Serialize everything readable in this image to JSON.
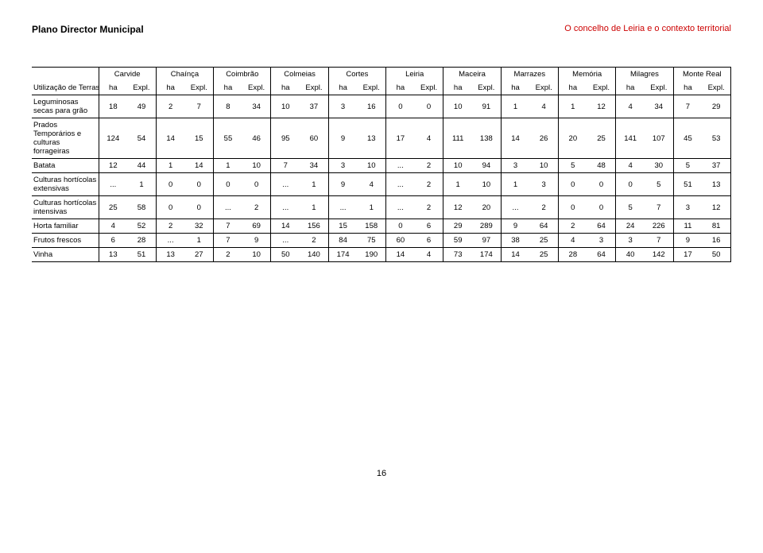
{
  "header": {
    "left": "Plano Director Municipal",
    "right": "O concelho de Leiria e o contexto territorial"
  },
  "table": {
    "regions": [
      "Carvide",
      "Chaínça",
      "Coimbrão",
      "Colmeias",
      "Cortes",
      "Leiria",
      "Maceira",
      "Marrazes",
      "Memória",
      "Milagres",
      "Monte Real"
    ],
    "subcols": [
      "ha",
      "Expl."
    ],
    "rowLabelHeader": "Utilização de Terras",
    "rows": [
      {
        "label": "Leguminosas secas para grão",
        "cells": [
          "18",
          "49",
          "2",
          "7",
          "8",
          "34",
          "10",
          "37",
          "3",
          "16",
          "0",
          "0",
          "10",
          "91",
          "1",
          "4",
          "1",
          "12",
          "4",
          "34",
          "7",
          "29"
        ]
      },
      {
        "label": "Prados Temporários e culturas forrageiras",
        "cells": [
          "124",
          "54",
          "14",
          "15",
          "55",
          "46",
          "95",
          "60",
          "9",
          "13",
          "17",
          "4",
          "111",
          "138",
          "14",
          "26",
          "20",
          "25",
          "141",
          "107",
          "45",
          "53"
        ]
      },
      {
        "label": "Batata",
        "cells": [
          "12",
          "44",
          "1",
          "14",
          "1",
          "10",
          "7",
          "34",
          "3",
          "10",
          "...",
          "2",
          "10",
          "94",
          "3",
          "10",
          "5",
          "48",
          "4",
          "30",
          "5",
          "37"
        ]
      },
      {
        "label": "Culturas hortícolas extensivas",
        "cells": [
          "...",
          "1",
          "0",
          "0",
          "0",
          "0",
          "...",
          "1",
          "9",
          "4",
          "...",
          "2",
          "1",
          "10",
          "1",
          "3",
          "0",
          "0",
          "0",
          "5",
          "51",
          "13"
        ]
      },
      {
        "label": "Culturas hortícolas intensivas",
        "cells": [
          "25",
          "58",
          "0",
          "0",
          "...",
          "2",
          "...",
          "1",
          "...",
          "1",
          "...",
          "2",
          "12",
          "20",
          "...",
          "2",
          "0",
          "0",
          "5",
          "7",
          "3",
          "12"
        ]
      },
      {
        "label": "Horta familiar",
        "cells": [
          "4",
          "52",
          "2",
          "32",
          "7",
          "69",
          "14",
          "156",
          "15",
          "158",
          "0",
          "6",
          "29",
          "289",
          "9",
          "64",
          "2",
          "64",
          "24",
          "226",
          "11",
          "81"
        ]
      },
      {
        "label": "Frutos frescos",
        "cells": [
          "6",
          "28",
          "...",
          "1",
          "7",
          "9",
          "...",
          "2",
          "84",
          "75",
          "60",
          "6",
          "59",
          "97",
          "38",
          "25",
          "4",
          "3",
          "3",
          "7",
          "9",
          "16"
        ]
      },
      {
        "label": "Vinha",
        "cells": [
          "13",
          "51",
          "13",
          "27",
          "2",
          "10",
          "50",
          "140",
          "174",
          "190",
          "14",
          "4",
          "73",
          "174",
          "14",
          "25",
          "28",
          "64",
          "40",
          "142",
          "17",
          "50"
        ]
      }
    ]
  },
  "footer": "16"
}
